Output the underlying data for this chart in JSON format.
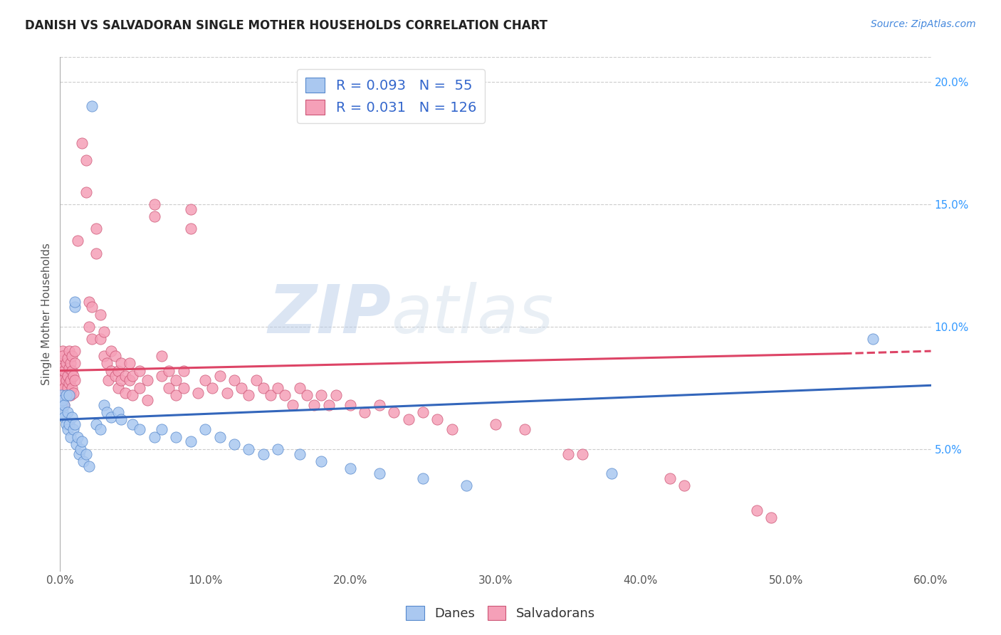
{
  "title": "DANISH VS SALVADORAN SINGLE MOTHER HOUSEHOLDS CORRELATION CHART",
  "source": "Source: ZipAtlas.com",
  "ylabel": "Single Mother Households",
  "xlim": [
    0.0,
    0.6
  ],
  "ylim": [
    0.0,
    0.21
  ],
  "danes_R": "0.093",
  "danes_N": "55",
  "salvadorans_R": "0.031",
  "salvadorans_N": "126",
  "danes_color": "#aac8f0",
  "salvadorans_color": "#f5a0b8",
  "danes_edge_color": "#5588cc",
  "salvadorans_edge_color": "#cc5575",
  "danes_line_color": "#3366bb",
  "salvadorans_line_color": "#dd4466",
  "watermark_zip": "ZIP",
  "watermark_atlas": "atlas",
  "background_color": "#ffffff",
  "danes_scatter": [
    [
      0.001,
      0.068
    ],
    [
      0.001,
      0.072
    ],
    [
      0.002,
      0.065
    ],
    [
      0.002,
      0.07
    ],
    [
      0.003,
      0.063
    ],
    [
      0.003,
      0.068
    ],
    [
      0.004,
      0.06
    ],
    [
      0.004,
      0.072
    ],
    [
      0.005,
      0.065
    ],
    [
      0.005,
      0.058
    ],
    [
      0.006,
      0.072
    ],
    [
      0.006,
      0.06
    ],
    [
      0.007,
      0.055
    ],
    [
      0.008,
      0.063
    ],
    [
      0.009,
      0.058
    ],
    [
      0.01,
      0.06
    ],
    [
      0.01,
      0.108
    ],
    [
      0.01,
      0.11
    ],
    [
      0.011,
      0.052
    ],
    [
      0.012,
      0.055
    ],
    [
      0.013,
      0.048
    ],
    [
      0.014,
      0.05
    ],
    [
      0.015,
      0.053
    ],
    [
      0.016,
      0.045
    ],
    [
      0.018,
      0.048
    ],
    [
      0.02,
      0.043
    ],
    [
      0.022,
      0.19
    ],
    [
      0.025,
      0.06
    ],
    [
      0.028,
      0.058
    ],
    [
      0.03,
      0.068
    ],
    [
      0.032,
      0.065
    ],
    [
      0.035,
      0.063
    ],
    [
      0.04,
      0.065
    ],
    [
      0.042,
      0.062
    ],
    [
      0.05,
      0.06
    ],
    [
      0.055,
      0.058
    ],
    [
      0.065,
      0.055
    ],
    [
      0.07,
      0.058
    ],
    [
      0.08,
      0.055
    ],
    [
      0.09,
      0.053
    ],
    [
      0.1,
      0.058
    ],
    [
      0.11,
      0.055
    ],
    [
      0.12,
      0.052
    ],
    [
      0.13,
      0.05
    ],
    [
      0.14,
      0.048
    ],
    [
      0.15,
      0.05
    ],
    [
      0.165,
      0.048
    ],
    [
      0.18,
      0.045
    ],
    [
      0.2,
      0.042
    ],
    [
      0.22,
      0.04
    ],
    [
      0.25,
      0.038
    ],
    [
      0.28,
      0.035
    ],
    [
      0.38,
      0.04
    ],
    [
      0.56,
      0.095
    ]
  ],
  "salvadorans_scatter": [
    [
      0.001,
      0.068
    ],
    [
      0.001,
      0.075
    ],
    [
      0.001,
      0.08
    ],
    [
      0.001,
      0.085
    ],
    [
      0.001,
      0.07
    ],
    [
      0.001,
      0.078
    ],
    [
      0.001,
      0.082
    ],
    [
      0.001,
      0.073
    ],
    [
      0.002,
      0.076
    ],
    [
      0.002,
      0.083
    ],
    [
      0.002,
      0.09
    ],
    [
      0.002,
      0.088
    ],
    [
      0.002,
      0.078
    ],
    [
      0.002,
      0.072
    ],
    [
      0.003,
      0.075
    ],
    [
      0.003,
      0.082
    ],
    [
      0.003,
      0.068
    ],
    [
      0.004,
      0.078
    ],
    [
      0.004,
      0.085
    ],
    [
      0.004,
      0.072
    ],
    [
      0.005,
      0.08
    ],
    [
      0.005,
      0.087
    ],
    [
      0.005,
      0.075
    ],
    [
      0.006,
      0.083
    ],
    [
      0.006,
      0.09
    ],
    [
      0.006,
      0.077
    ],
    [
      0.007,
      0.085
    ],
    [
      0.007,
      0.078
    ],
    [
      0.007,
      0.072
    ],
    [
      0.008,
      0.082
    ],
    [
      0.008,
      0.075
    ],
    [
      0.008,
      0.088
    ],
    [
      0.009,
      0.08
    ],
    [
      0.009,
      0.073
    ],
    [
      0.01,
      0.085
    ],
    [
      0.01,
      0.078
    ],
    [
      0.01,
      0.09
    ],
    [
      0.012,
      0.135
    ],
    [
      0.015,
      0.175
    ],
    [
      0.018,
      0.155
    ],
    [
      0.018,
      0.168
    ],
    [
      0.02,
      0.1
    ],
    [
      0.02,
      0.11
    ],
    [
      0.022,
      0.095
    ],
    [
      0.022,
      0.108
    ],
    [
      0.025,
      0.13
    ],
    [
      0.025,
      0.14
    ],
    [
      0.028,
      0.095
    ],
    [
      0.028,
      0.105
    ],
    [
      0.03,
      0.088
    ],
    [
      0.03,
      0.098
    ],
    [
      0.032,
      0.085
    ],
    [
      0.033,
      0.078
    ],
    [
      0.035,
      0.082
    ],
    [
      0.035,
      0.09
    ],
    [
      0.038,
      0.08
    ],
    [
      0.038,
      0.088
    ],
    [
      0.04,
      0.075
    ],
    [
      0.04,
      0.082
    ],
    [
      0.042,
      0.078
    ],
    [
      0.042,
      0.085
    ],
    [
      0.045,
      0.08
    ],
    [
      0.045,
      0.073
    ],
    [
      0.048,
      0.078
    ],
    [
      0.048,
      0.085
    ],
    [
      0.05,
      0.072
    ],
    [
      0.05,
      0.08
    ],
    [
      0.055,
      0.075
    ],
    [
      0.055,
      0.082
    ],
    [
      0.06,
      0.07
    ],
    [
      0.06,
      0.078
    ],
    [
      0.065,
      0.15
    ],
    [
      0.065,
      0.145
    ],
    [
      0.07,
      0.08
    ],
    [
      0.07,
      0.088
    ],
    [
      0.075,
      0.075
    ],
    [
      0.075,
      0.082
    ],
    [
      0.08,
      0.072
    ],
    [
      0.08,
      0.078
    ],
    [
      0.085,
      0.075
    ],
    [
      0.085,
      0.082
    ],
    [
      0.09,
      0.14
    ],
    [
      0.09,
      0.148
    ],
    [
      0.095,
      0.073
    ],
    [
      0.1,
      0.078
    ],
    [
      0.105,
      0.075
    ],
    [
      0.11,
      0.08
    ],
    [
      0.115,
      0.073
    ],
    [
      0.12,
      0.078
    ],
    [
      0.125,
      0.075
    ],
    [
      0.13,
      0.072
    ],
    [
      0.135,
      0.078
    ],
    [
      0.14,
      0.075
    ],
    [
      0.145,
      0.072
    ],
    [
      0.15,
      0.075
    ],
    [
      0.155,
      0.072
    ],
    [
      0.16,
      0.068
    ],
    [
      0.165,
      0.075
    ],
    [
      0.17,
      0.072
    ],
    [
      0.175,
      0.068
    ],
    [
      0.18,
      0.072
    ],
    [
      0.185,
      0.068
    ],
    [
      0.19,
      0.072
    ],
    [
      0.2,
      0.068
    ],
    [
      0.21,
      0.065
    ],
    [
      0.22,
      0.068
    ],
    [
      0.23,
      0.065
    ],
    [
      0.24,
      0.062
    ],
    [
      0.25,
      0.065
    ],
    [
      0.26,
      0.062
    ],
    [
      0.27,
      0.058
    ],
    [
      0.3,
      0.06
    ],
    [
      0.32,
      0.058
    ],
    [
      0.35,
      0.048
    ],
    [
      0.36,
      0.048
    ],
    [
      0.42,
      0.038
    ],
    [
      0.43,
      0.035
    ],
    [
      0.48,
      0.025
    ],
    [
      0.49,
      0.022
    ]
  ],
  "danes_trendline": [
    [
      0.0,
      0.062
    ],
    [
      0.6,
      0.076
    ]
  ],
  "salvadorans_trendline_solid": [
    [
      0.0,
      0.082
    ],
    [
      0.54,
      0.089
    ]
  ],
  "salvadorans_trendline_dashed": [
    [
      0.54,
      0.089
    ],
    [
      0.6,
      0.09
    ]
  ]
}
